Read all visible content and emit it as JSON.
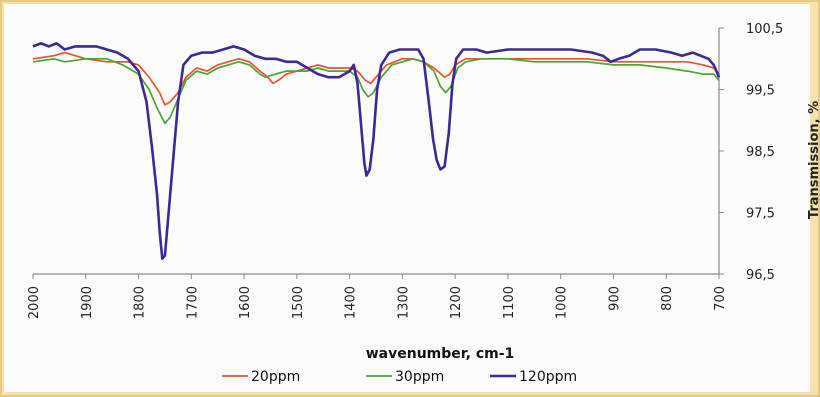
{
  "chart_data": {
    "type": "line",
    "xlabel": "wavenumber, cm-1",
    "ylabel": "Transmission, %",
    "xlim": [
      2000,
      700
    ],
    "x_reversed": true,
    "ylim": [
      96.5,
      100.5
    ],
    "x_ticks": [
      "2000",
      "1900",
      "1800",
      "1700",
      "1600",
      "1500",
      "1400",
      "1300",
      "1200",
      "1100",
      "1000",
      "900",
      "800",
      "700"
    ],
    "y_ticks": [
      "100,5",
      "99,5",
      "98,5",
      "97,5",
      "96,5"
    ],
    "legend_position": "bottom",
    "grid": false,
    "series": [
      {
        "name": "20ppm",
        "color": "#e8532e",
        "points": [
          [
            2000,
            100.0
          ],
          [
            1960,
            100.05
          ],
          [
            1940,
            100.1
          ],
          [
            1900,
            100.0
          ],
          [
            1860,
            99.95
          ],
          [
            1820,
            99.95
          ],
          [
            1800,
            99.9
          ],
          [
            1780,
            99.7
          ],
          [
            1760,
            99.45
          ],
          [
            1750,
            99.25
          ],
          [
            1740,
            99.3
          ],
          [
            1725,
            99.45
          ],
          [
            1710,
            99.7
          ],
          [
            1690,
            99.85
          ],
          [
            1670,
            99.8
          ],
          [
            1650,
            99.9
          ],
          [
            1630,
            99.95
          ],
          [
            1610,
            100.0
          ],
          [
            1590,
            99.95
          ],
          [
            1570,
            99.8
          ],
          [
            1555,
            99.7
          ],
          [
            1545,
            99.6
          ],
          [
            1535,
            99.65
          ],
          [
            1520,
            99.75
          ],
          [
            1500,
            99.8
          ],
          [
            1480,
            99.85
          ],
          [
            1460,
            99.9
          ],
          [
            1440,
            99.85
          ],
          [
            1420,
            99.85
          ],
          [
            1400,
            99.85
          ],
          [
            1385,
            99.8
          ],
          [
            1370,
            99.65
          ],
          [
            1360,
            99.6
          ],
          [
            1350,
            99.7
          ],
          [
            1330,
            99.9
          ],
          [
            1300,
            100.0
          ],
          [
            1280,
            100.0
          ],
          [
            1260,
            99.95
          ],
          [
            1240,
            99.85
          ],
          [
            1220,
            99.7
          ],
          [
            1210,
            99.75
          ],
          [
            1200,
            99.9
          ],
          [
            1180,
            100.0
          ],
          [
            1150,
            100.0
          ],
          [
            1100,
            100.0
          ],
          [
            1050,
            100.0
          ],
          [
            1000,
            100.0
          ],
          [
            950,
            100.0
          ],
          [
            900,
            99.95
          ],
          [
            850,
            99.95
          ],
          [
            800,
            99.95
          ],
          [
            760,
            99.95
          ],
          [
            730,
            99.9
          ],
          [
            710,
            99.85
          ],
          [
            700,
            99.75
          ]
        ]
      },
      {
        "name": "30ppm",
        "color": "#4ba534",
        "points": [
          [
            2000,
            99.95
          ],
          [
            1960,
            100.0
          ],
          [
            1940,
            99.95
          ],
          [
            1900,
            100.0
          ],
          [
            1860,
            100.0
          ],
          [
            1830,
            99.9
          ],
          [
            1800,
            99.75
          ],
          [
            1780,
            99.5
          ],
          [
            1765,
            99.2
          ],
          [
            1750,
            98.95
          ],
          [
            1740,
            99.05
          ],
          [
            1725,
            99.35
          ],
          [
            1710,
            99.65
          ],
          [
            1690,
            99.8
          ],
          [
            1670,
            99.75
          ],
          [
            1650,
            99.85
          ],
          [
            1630,
            99.9
          ],
          [
            1610,
            99.95
          ],
          [
            1590,
            99.9
          ],
          [
            1570,
            99.75
          ],
          [
            1560,
            99.7
          ],
          [
            1540,
            99.75
          ],
          [
            1520,
            99.8
          ],
          [
            1500,
            99.8
          ],
          [
            1480,
            99.8
          ],
          [
            1460,
            99.85
          ],
          [
            1440,
            99.8
          ],
          [
            1420,
            99.8
          ],
          [
            1400,
            99.8
          ],
          [
            1385,
            99.7
          ],
          [
            1375,
            99.5
          ],
          [
            1365,
            99.38
          ],
          [
            1355,
            99.45
          ],
          [
            1340,
            99.7
          ],
          [
            1320,
            99.9
          ],
          [
            1300,
            99.95
          ],
          [
            1280,
            100.0
          ],
          [
            1260,
            99.95
          ],
          [
            1240,
            99.8
          ],
          [
            1228,
            99.55
          ],
          [
            1218,
            99.45
          ],
          [
            1208,
            99.55
          ],
          [
            1195,
            99.85
          ],
          [
            1180,
            99.95
          ],
          [
            1150,
            100.0
          ],
          [
            1100,
            100.0
          ],
          [
            1050,
            99.95
          ],
          [
            1000,
            99.95
          ],
          [
            950,
            99.95
          ],
          [
            900,
            99.9
          ],
          [
            850,
            99.9
          ],
          [
            800,
            99.85
          ],
          [
            760,
            99.8
          ],
          [
            730,
            99.75
          ],
          [
            710,
            99.75
          ],
          [
            700,
            99.65
          ]
        ]
      },
      {
        "name": "120ppm",
        "color": "#3a2a92",
        "points": [
          [
            2000,
            100.2
          ],
          [
            1985,
            100.25
          ],
          [
            1970,
            100.2
          ],
          [
            1955,
            100.25
          ],
          [
            1940,
            100.15
          ],
          [
            1920,
            100.2
          ],
          [
            1900,
            100.2
          ],
          [
            1880,
            100.2
          ],
          [
            1860,
            100.15
          ],
          [
            1840,
            100.1
          ],
          [
            1820,
            100.0
          ],
          [
            1800,
            99.8
          ],
          [
            1785,
            99.3
          ],
          [
            1775,
            98.6
          ],
          [
            1765,
            97.8
          ],
          [
            1760,
            97.2
          ],
          [
            1755,
            96.75
          ],
          [
            1750,
            96.8
          ],
          [
            1745,
            97.3
          ],
          [
            1740,
            97.8
          ],
          [
            1733,
            98.5
          ],
          [
            1725,
            99.3
          ],
          [
            1715,
            99.9
          ],
          [
            1700,
            100.05
          ],
          [
            1680,
            100.1
          ],
          [
            1660,
            100.1
          ],
          [
            1640,
            100.15
          ],
          [
            1620,
            100.2
          ],
          [
            1600,
            100.15
          ],
          [
            1580,
            100.05
          ],
          [
            1560,
            100.0
          ],
          [
            1540,
            100.0
          ],
          [
            1520,
            99.95
          ],
          [
            1500,
            99.95
          ],
          [
            1480,
            99.85
          ],
          [
            1460,
            99.75
          ],
          [
            1440,
            99.7
          ],
          [
            1420,
            99.7
          ],
          [
            1400,
            99.8
          ],
          [
            1392,
            99.9
          ],
          [
            1385,
            99.6
          ],
          [
            1378,
            98.9
          ],
          [
            1372,
            98.3
          ],
          [
            1368,
            98.1
          ],
          [
            1362,
            98.2
          ],
          [
            1355,
            98.7
          ],
          [
            1348,
            99.5
          ],
          [
            1340,
            99.9
          ],
          [
            1325,
            100.1
          ],
          [
            1305,
            100.15
          ],
          [
            1285,
            100.15
          ],
          [
            1270,
            100.15
          ],
          [
            1260,
            100.0
          ],
          [
            1250,
            99.3
          ],
          [
            1242,
            98.7
          ],
          [
            1235,
            98.35
          ],
          [
            1228,
            98.2
          ],
          [
            1220,
            98.25
          ],
          [
            1212,
            98.8
          ],
          [
            1205,
            99.6
          ],
          [
            1198,
            100.0
          ],
          [
            1185,
            100.15
          ],
          [
            1160,
            100.15
          ],
          [
            1140,
            100.1
          ],
          [
            1100,
            100.15
          ],
          [
            1060,
            100.15
          ],
          [
            1020,
            100.15
          ],
          [
            980,
            100.15
          ],
          [
            940,
            100.1
          ],
          [
            920,
            100.05
          ],
          [
            905,
            99.95
          ],
          [
            890,
            100.0
          ],
          [
            870,
            100.05
          ],
          [
            850,
            100.15
          ],
          [
            820,
            100.15
          ],
          [
            790,
            100.1
          ],
          [
            770,
            100.05
          ],
          [
            750,
            100.1
          ],
          [
            735,
            100.05
          ],
          [
            720,
            100.0
          ],
          [
            710,
            99.9
          ],
          [
            705,
            99.8
          ],
          [
            700,
            99.7
          ]
        ]
      }
    ]
  }
}
